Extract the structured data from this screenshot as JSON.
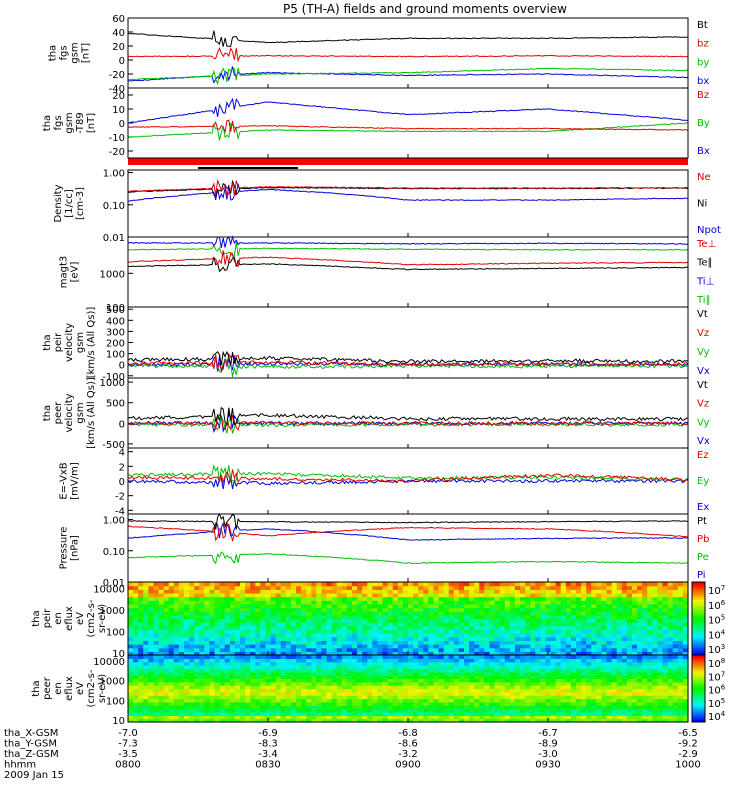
{
  "title": "P5 (TH-A) fields and ground moments overview",
  "footer": {
    "rows": [
      {
        "label": "tha_X-GSM",
        "values": [
          "-7.0",
          "-6.9",
          "-6.8",
          "-6.7",
          "-6.5"
        ]
      },
      {
        "label": "tha_Y-GSM",
        "values": [
          "-7.3",
          "-8.3",
          "-8.6",
          "-8.9",
          "-9.2"
        ]
      },
      {
        "label": "tha_Z-GSM",
        "values": [
          "-3.5",
          "-3.4",
          "-3.2",
          "-3.0",
          "-2.9"
        ]
      },
      {
        "label": "hhmm",
        "values": [
          "0800",
          "0830",
          "0900",
          "0930",
          "1000"
        ]
      }
    ],
    "date": "2009 Jan 15"
  },
  "chart_data": [
    {
      "type": "line",
      "ylabel": [
        "tha",
        "fgs",
        "gsm",
        "[nT]"
      ],
      "yticks": [
        "60",
        "40",
        "20",
        "0",
        "-20",
        "-40"
      ],
      "ylim": [
        -40,
        60
      ],
      "x": [
        "0800",
        "0830",
        "0900",
        "0930",
        "1000"
      ],
      "series": [
        {
          "name": "Bt",
          "color": "#000000",
          "values": [
            38,
            25,
            31,
            31,
            33
          ]
        },
        {
          "name": "bz",
          "color": "#e00000",
          "values": [
            5,
            6,
            5,
            6,
            5
          ]
        },
        {
          "name": "by",
          "color": "#00c000",
          "values": [
            -28,
            -20,
            -18,
            -12,
            -15
          ]
        },
        {
          "name": "bx",
          "color": "#0000e0",
          "values": [
            -30,
            -18,
            -22,
            -20,
            -25
          ]
        }
      ]
    },
    {
      "type": "line",
      "ylabel": [
        "tha",
        "fgs",
        "gsm",
        "-T89",
        "[nT]"
      ],
      "yticks": [
        "20",
        "10",
        "0",
        "-10",
        "-20"
      ],
      "ylim": [
        -25,
        25
      ],
      "x": [
        "0800",
        "0830",
        "0900",
        "0930",
        "1000"
      ],
      "series": [
        {
          "name": "Bz",
          "color": "#e00000",
          "values": [
            -3,
            -2,
            -4,
            -4,
            -5
          ]
        },
        {
          "name": "By",
          "color": "#00c000",
          "values": [
            -10,
            -5,
            -6,
            -6,
            0
          ]
        },
        {
          "name": "Bx",
          "color": "#0000e0",
          "values": [
            0,
            15,
            6,
            10,
            2
          ]
        }
      ]
    },
    {
      "type": "line",
      "scale": "log",
      "ylabel": [
        "Density",
        "[1/cc]",
        "[cm-3]"
      ],
      "yticks": [
        "1.00",
        "0.10",
        "0.01"
      ],
      "ylim": [
        0.01,
        1.2
      ],
      "x": [
        "0800",
        "0830",
        "0900",
        "0930",
        "1000"
      ],
      "series": [
        {
          "name": "Ne",
          "color": "#e00000",
          "values": [
            0.26,
            0.36,
            0.33,
            0.33,
            0.34
          ]
        },
        {
          "name": "Ni",
          "color": "#000000",
          "values": [
            0.25,
            0.34,
            0.32,
            0.32,
            0.33
          ]
        },
        {
          "name": "Npot",
          "color": "#0000e0",
          "values": [
            0.13,
            0.3,
            0.14,
            0.14,
            0.16
          ]
        }
      ]
    },
    {
      "type": "line",
      "scale": "log",
      "ylabel": [
        "magt3",
        "[eV]"
      ],
      "yticks": [
        "1000",
        "100"
      ],
      "ylim": [
        100,
        12000
      ],
      "x": [
        "0800",
        "0830",
        "0900",
        "0930",
        "1000"
      ],
      "series": [
        {
          "name": "Te⊥",
          "color": "#e00000",
          "values": [
            2200,
            3000,
            1800,
            2000,
            2100
          ]
        },
        {
          "name": "Te∥",
          "color": "#000000",
          "values": [
            1600,
            1900,
            1300,
            1400,
            1500
          ]
        },
        {
          "name": "Ti⊥",
          "color": "#0000e0",
          "values": [
            8000,
            8000,
            7500,
            7800,
            7500
          ]
        },
        {
          "name": "Ti∥",
          "color": "#00c000",
          "values": [
            5000,
            5500,
            5200,
            5000,
            5000
          ]
        }
      ]
    },
    {
      "type": "line",
      "ylabel": [
        "tha",
        "peir",
        "velocity",
        "gsm",
        "[km/s (All Qs)]"
      ],
      "yticks": [
        "500",
        "400",
        "300",
        "200",
        "100",
        "0",
        "-100"
      ],
      "ylim": [
        -120,
        520
      ],
      "x": [
        "0800",
        "0830",
        "0900",
        "0930",
        "1000"
      ],
      "series": [
        {
          "name": "Vt",
          "color": "#000000",
          "values": [
            40,
            60,
            30,
            35,
            30
          ]
        },
        {
          "name": "Vz",
          "color": "#e00000",
          "values": [
            10,
            20,
            5,
            5,
            5
          ]
        },
        {
          "name": "Vy",
          "color": "#00c000",
          "values": [
            -10,
            -20,
            -10,
            -15,
            -10
          ]
        },
        {
          "name": "Vx",
          "color": "#0000e0",
          "values": [
            0,
            10,
            0,
            5,
            0
          ]
        }
      ]
    },
    {
      "type": "line",
      "ylabel": [
        "tha",
        "peer",
        "velocity",
        "gsm",
        "[km/s (All Qs)]"
      ],
      "yticks": [
        "1000",
        "500",
        "0",
        "-500"
      ],
      "ylim": [
        -600,
        1100
      ],
      "x": [
        "0800",
        "0830",
        "0900",
        "0930",
        "1000"
      ],
      "series": [
        {
          "name": "Vt",
          "color": "#000000",
          "values": [
            120,
            200,
            110,
            110,
            100
          ]
        },
        {
          "name": "Vz",
          "color": "#e00000",
          "values": [
            0,
            10,
            0,
            0,
            0
          ]
        },
        {
          "name": "Vy",
          "color": "#00c000",
          "values": [
            -30,
            -40,
            -30,
            -30,
            -30
          ]
        },
        {
          "name": "Vx",
          "color": "#0000e0",
          "values": [
            0,
            0,
            0,
            0,
            0
          ]
        }
      ]
    },
    {
      "type": "line",
      "ylabel": [
        "E=-VxB",
        "[mV/m]"
      ],
      "yticks": [
        "4",
        "2",
        "0",
        "-2",
        "-4"
      ],
      "ylim": [
        -4.5,
        4.5
      ],
      "x": [
        "0800",
        "0830",
        "0900",
        "0930",
        "1000"
      ],
      "series": [
        {
          "name": "Ez",
          "color": "#e00000",
          "values": [
            0.5,
            0.3,
            0,
            0.8,
            0.2
          ]
        },
        {
          "name": "Ey",
          "color": "#00c000",
          "values": [
            0.8,
            1.0,
            0.4,
            0.5,
            0.2
          ]
        },
        {
          "name": "Ex",
          "color": "#0000e0",
          "values": [
            0,
            -0.3,
            0,
            0,
            0
          ]
        }
      ]
    },
    {
      "type": "line",
      "scale": "log",
      "ylabel": [
        "Pressure",
        "[nPa]"
      ],
      "yticks": [
        "1.00",
        "0.10",
        "0.01"
      ],
      "ylim": [
        0.01,
        1.5
      ],
      "x": [
        "0800",
        "0830",
        "0900",
        "0930",
        "1000"
      ],
      "series": [
        {
          "name": "Pt",
          "color": "#000000",
          "values": [
            0.9,
            0.85,
            0.8,
            0.85,
            0.9
          ]
        },
        {
          "name": "Pb",
          "color": "#e00000",
          "values": [
            0.6,
            0.3,
            0.55,
            0.5,
            0.28
          ]
        },
        {
          "name": "Pe",
          "color": "#00c000",
          "values": [
            0.06,
            0.08,
            0.04,
            0.045,
            0.04
          ]
        },
        {
          "name": "Pi",
          "color": "#0000e0",
          "values": [
            0.25,
            0.5,
            0.22,
            0.25,
            0.26
          ]
        }
      ]
    },
    {
      "type": "heatmap",
      "ylabel": [
        "tha",
        "peir",
        "en",
        "eflux",
        "eV",
        "(cm2-s-",
        "sr-eV)"
      ],
      "yticks": [
        "10000",
        "1000",
        "100",
        "10"
      ],
      "colorbar_ticks": [
        "10^7",
        "10^6",
        "10^5",
        "10^4",
        "10^3"
      ]
    },
    {
      "type": "heatmap",
      "ylabel": [
        "tha",
        "peer",
        "en",
        "eflux",
        "eV",
        "(cm2-s-",
        "sr-eV)"
      ],
      "yticks": [
        "10000",
        "1000",
        "100",
        "10"
      ],
      "colorbar_ticks": [
        "10^8",
        "10^7",
        "10^6",
        "10^5",
        "10^4"
      ]
    }
  ]
}
